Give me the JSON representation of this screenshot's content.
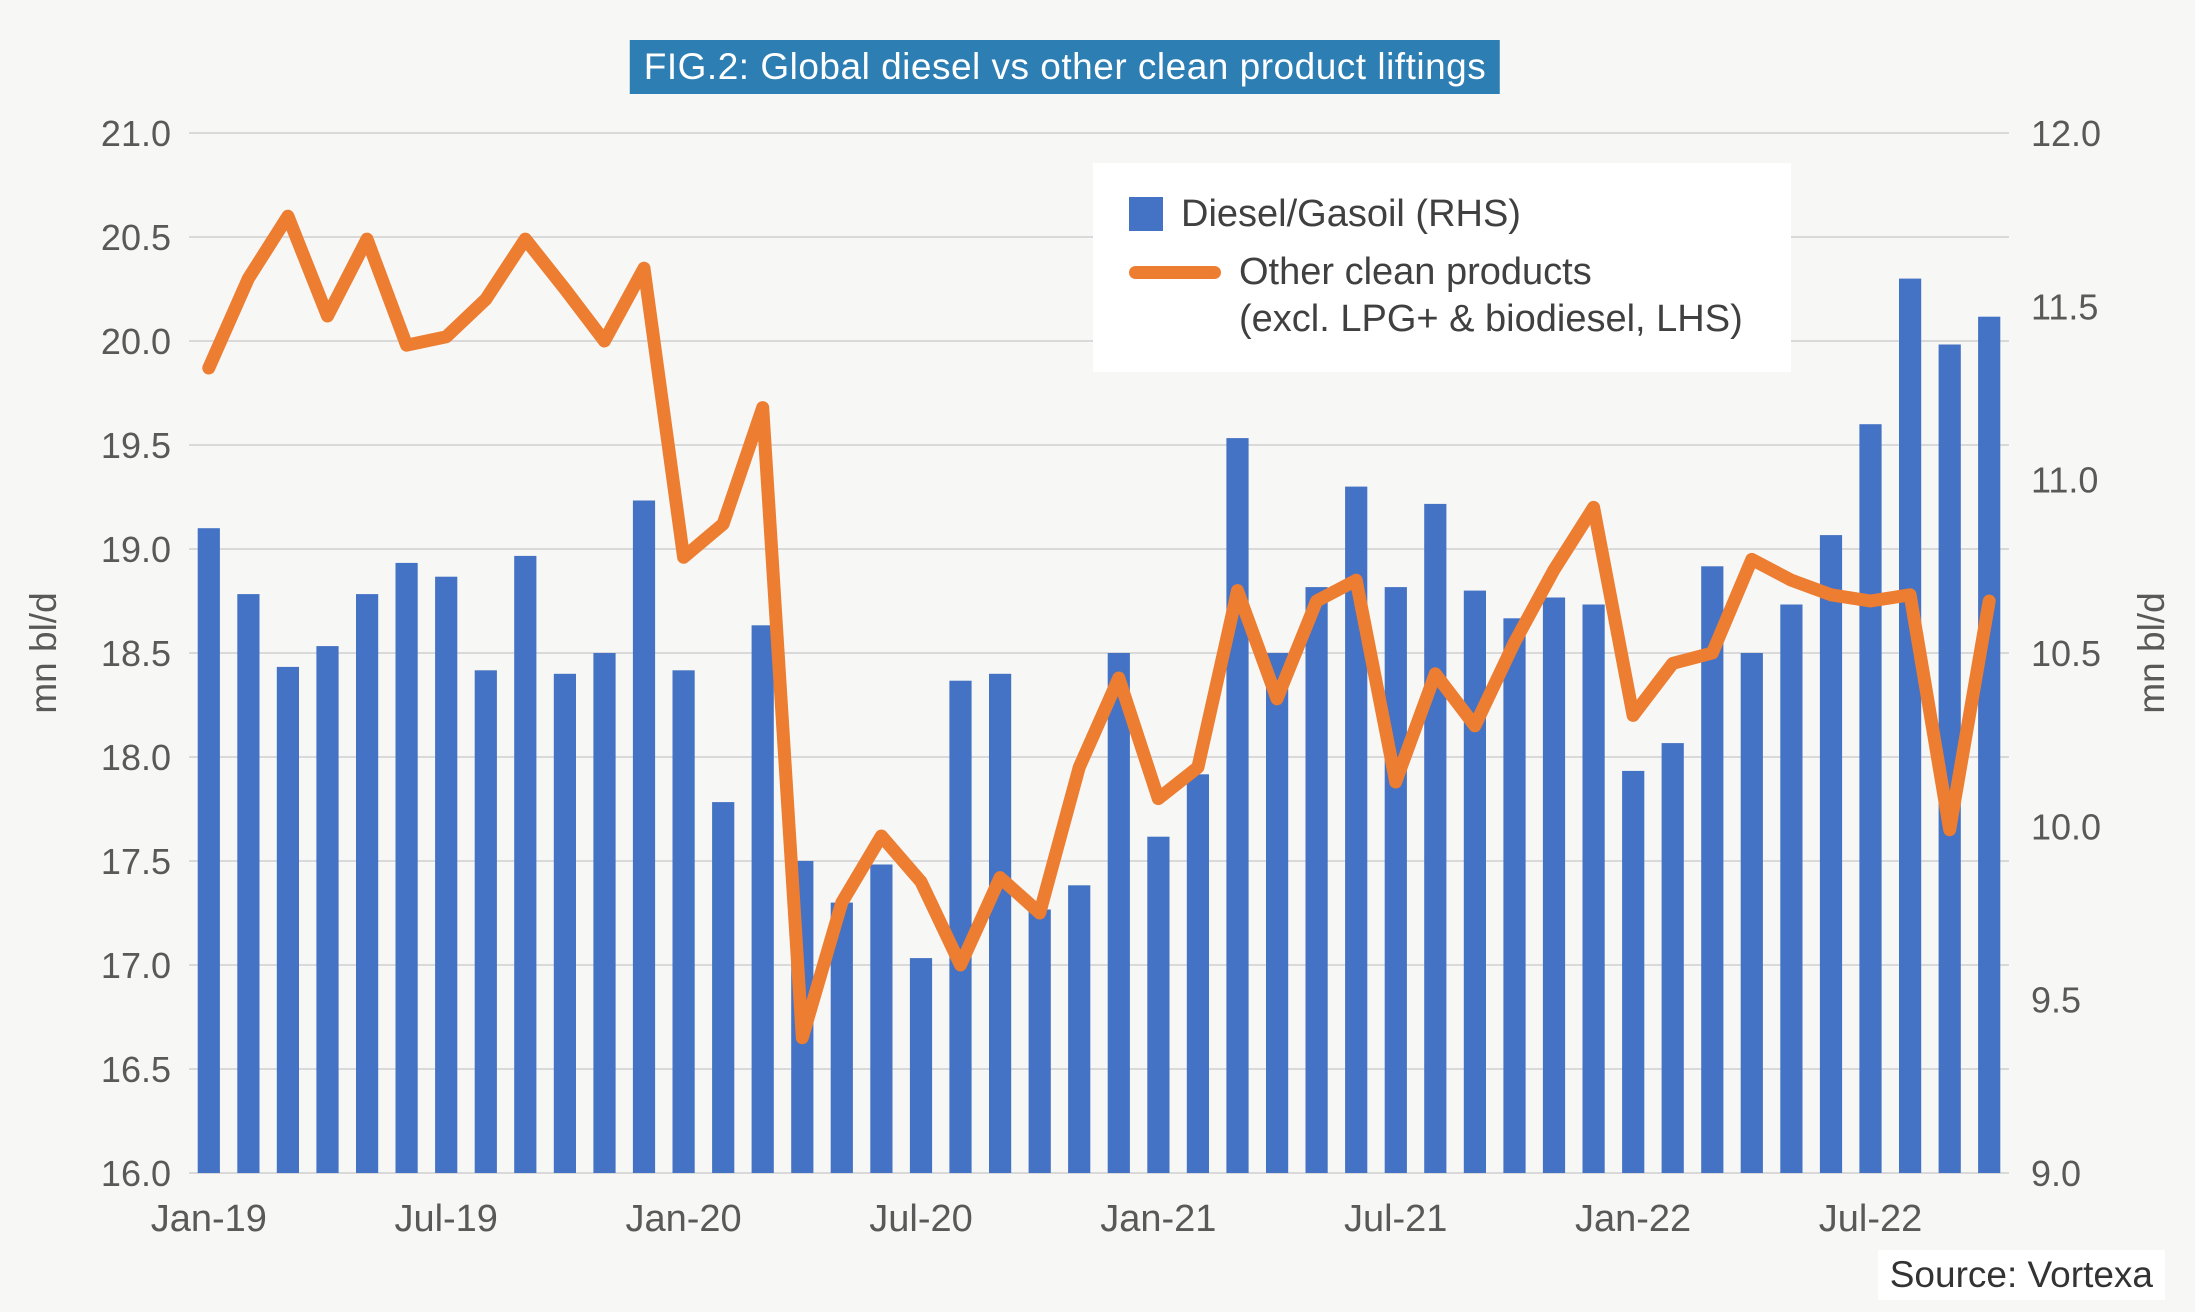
{
  "title": "FIG.2: Global diesel vs other clean product liftings",
  "source": "Source: Vortexa",
  "legend": {
    "items": [
      {
        "label": "Diesel/Gasoil (RHS)"
      },
      {
        "label": "Other clean products",
        "label_line2": "(excl. LPG+ & biodiesel, LHS)"
      }
    ]
  },
  "colors": {
    "bar": "#4472C4",
    "line": "#ED7D31",
    "grid": "#D9D9D9",
    "axis_text": "#595959",
    "title_bg": "#2D7EB3",
    "title_text": "#FFFFFF",
    "background": "#F7F7F5",
    "legend_bg": "#FFFFFF"
  },
  "chart_data": {
    "type": "bar+line combo",
    "title": "FIG.2: Global diesel vs other clean product liftings",
    "x_tick_labels": [
      "Jan-19",
      "Jul-19",
      "Jan-20",
      "Jul-20",
      "Jan-21",
      "Jul-21",
      "Jan-22",
      "Jul-22"
    ],
    "x_tick_every": 6,
    "grid": true,
    "legend_position": "top-right-inside",
    "left_axis": {
      "title": "mn bl/d",
      "min": 16.0,
      "max": 21.0,
      "step": 0.5
    },
    "right_axis": {
      "title": "mn bl/d",
      "min": 9.0,
      "max": 12.0,
      "step": 0.5
    },
    "months": [
      "Jan-19",
      "Feb-19",
      "Mar-19",
      "Apr-19",
      "May-19",
      "Jun-19",
      "Jul-19",
      "Aug-19",
      "Sep-19",
      "Oct-19",
      "Nov-19",
      "Dec-19",
      "Jan-20",
      "Feb-20",
      "Mar-20",
      "Apr-20",
      "May-20",
      "Jun-20",
      "Jul-20",
      "Aug-20",
      "Sep-20",
      "Oct-20",
      "Nov-20",
      "Dec-20",
      "Jan-21",
      "Feb-21",
      "Mar-21",
      "Apr-21",
      "May-21",
      "Jun-21",
      "Jul-21",
      "Aug-21",
      "Sep-21",
      "Oct-21",
      "Nov-21",
      "Dec-21",
      "Jan-22",
      "Feb-22",
      "Mar-22",
      "Apr-22",
      "May-22",
      "Jun-22",
      "Jul-22",
      "Aug-22",
      "Sep-22",
      "Oct-22"
    ],
    "series": [
      {
        "name": "Diesel/Gasoil (RHS)",
        "type": "bar",
        "axis": "right",
        "values": [
          10.86,
          10.67,
          10.46,
          10.52,
          10.67,
          10.76,
          10.72,
          10.45,
          10.78,
          10.44,
          10.5,
          10.94,
          10.45,
          10.07,
          10.58,
          9.9,
          9.78,
          9.89,
          9.62,
          10.42,
          10.44,
          9.76,
          9.83,
          10.5,
          9.97,
          10.15,
          11.12,
          10.5,
          10.69,
          10.98,
          10.69,
          10.93,
          10.68,
          10.6,
          10.66,
          10.64,
          10.16,
          10.24,
          10.75,
          10.5,
          10.64,
          10.84,
          11.16,
          11.58,
          11.39,
          11.47
        ]
      },
      {
        "name": "Other clean products (excl. LPG+ & biodiesel, LHS)",
        "type": "line",
        "axis": "left",
        "values": [
          19.87,
          20.3,
          20.6,
          20.12,
          20.49,
          19.98,
          20.02,
          20.2,
          20.49,
          20.25,
          20.0,
          20.35,
          18.96,
          19.12,
          19.68,
          16.65,
          17.3,
          17.62,
          17.4,
          17.0,
          17.42,
          17.25,
          17.95,
          18.38,
          17.8,
          17.95,
          18.8,
          18.28,
          18.75,
          18.85,
          17.88,
          18.4,
          18.15,
          18.55,
          18.9,
          19.2,
          18.2,
          18.45,
          18.5,
          18.95,
          18.85,
          18.78,
          18.75,
          18.78,
          17.65,
          18.75
        ]
      }
    ]
  }
}
